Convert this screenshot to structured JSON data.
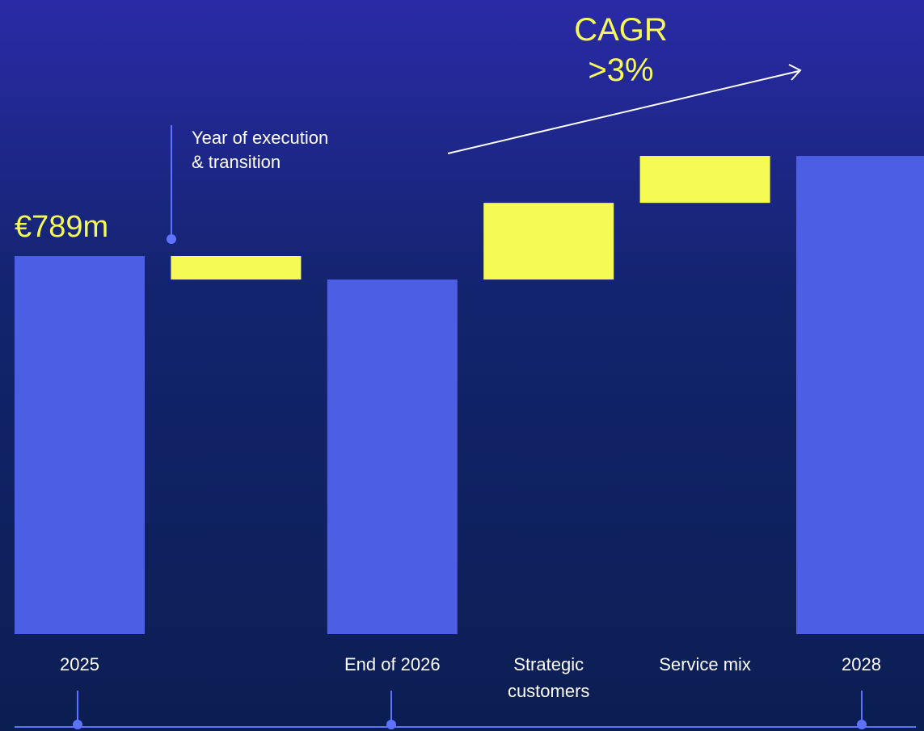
{
  "chart_data": {
    "type": "waterfall",
    "title": "CAGR >3%",
    "annotation": "Year of execution & transition",
    "categories": [
      "2025",
      null,
      "End of 2026",
      "Strategic customers",
      "Service mix",
      "2028"
    ],
    "values": [
      789,
      -49,
      740,
      160,
      98,
      998
    ],
    "value_labels": [
      "€789m",
      null,
      null,
      null,
      null,
      null
    ],
    "measures": [
      "total",
      "relative",
      "total",
      "relative",
      "relative",
      "total"
    ],
    "total_color": "#4b5ee4",
    "delta_color": "#f5fa55"
  }
}
